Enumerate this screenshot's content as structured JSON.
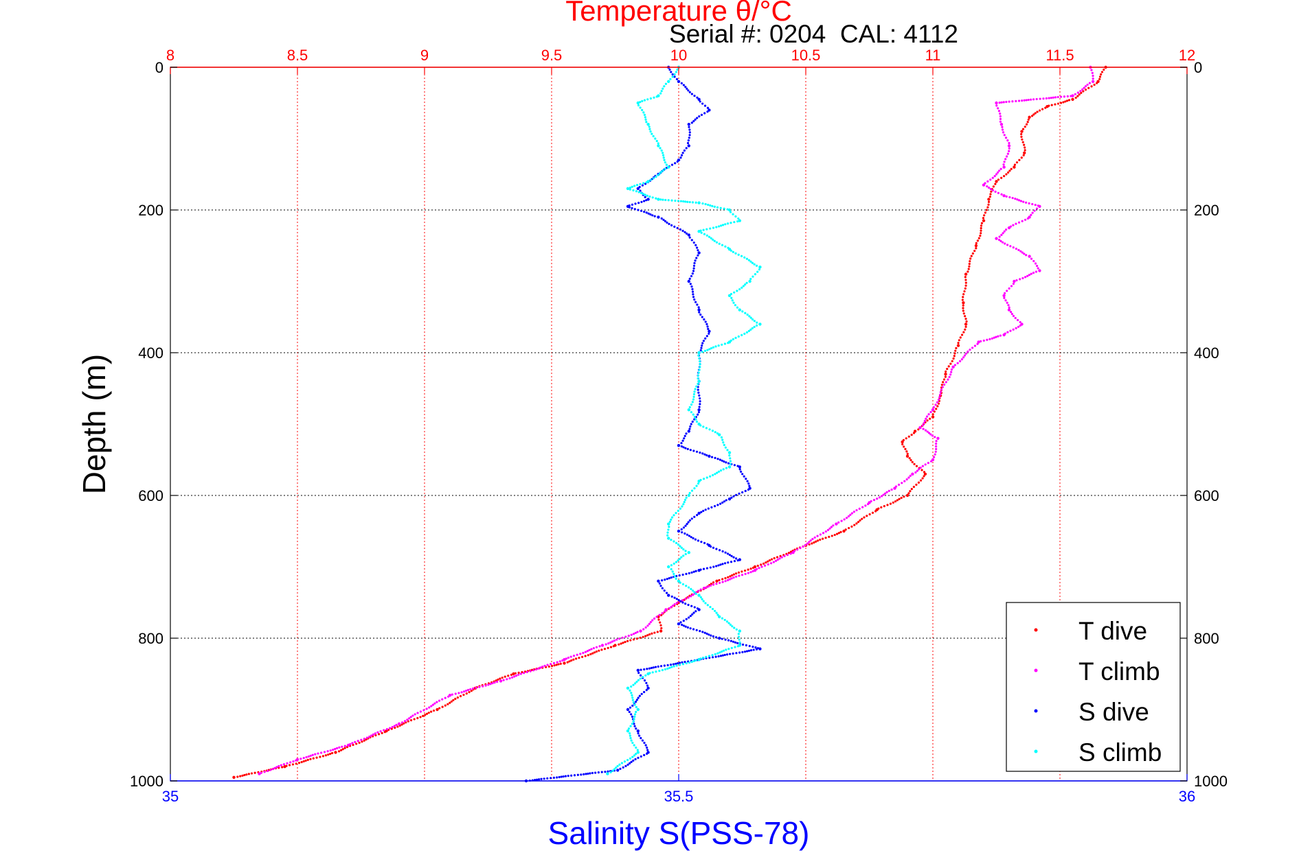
{
  "chart_data": {
    "type": "scatter",
    "title": "Temperature θ/°C",
    "subtitle": "Serial #: 0204  CAL: 4112",
    "xlabel": "Salinity S(PSS-78)",
    "ylabel": "Depth (m)",
    "x_top": {
      "range": [
        8,
        12
      ],
      "ticks": [
        "8",
        "8.5",
        "9",
        "9.5",
        "10",
        "10.5",
        "11",
        "11.5",
        "12"
      ],
      "color": "#ff0000"
    },
    "x_bottom": {
      "range": [
        35,
        36
      ],
      "ticks": [
        "35",
        "35.5",
        "36"
      ],
      "color": "#0000ff"
    },
    "y": {
      "range": [
        0,
        1000
      ],
      "reversed": true,
      "ticks": [
        "0",
        "200",
        "400",
        "600",
        "800",
        "1000"
      ]
    },
    "grid": true,
    "legend": {
      "position": "bottom-right",
      "entries": [
        "T dive",
        "T climb",
        "S dive",
        "S climb"
      ]
    },
    "series": [
      {
        "name": "T dive",
        "axis": "top",
        "color": "#ff0000",
        "points": [
          [
            11.68,
            0
          ],
          [
            11.65,
            20
          ],
          [
            11.55,
            45
          ],
          [
            11.45,
            55
          ],
          [
            11.38,
            70
          ],
          [
            11.35,
            90
          ],
          [
            11.36,
            120
          ],
          [
            11.32,
            140
          ],
          [
            11.25,
            160
          ],
          [
            11.22,
            185
          ],
          [
            11.2,
            215
          ],
          [
            11.17,
            250
          ],
          [
            11.13,
            290
          ],
          [
            11.12,
            330
          ],
          [
            11.13,
            360
          ],
          [
            11.1,
            390
          ],
          [
            11.05,
            430
          ],
          [
            11.03,
            460
          ],
          [
            11.0,
            490
          ],
          [
            10.93,
            510
          ],
          [
            10.88,
            525
          ],
          [
            10.9,
            545
          ],
          [
            10.97,
            570
          ],
          [
            10.9,
            600
          ],
          [
            10.78,
            620
          ],
          [
            10.65,
            650
          ],
          [
            10.5,
            670
          ],
          [
            10.3,
            700
          ],
          [
            10.15,
            720
          ],
          [
            10.0,
            750
          ],
          [
            9.92,
            770
          ],
          [
            9.93,
            790
          ],
          [
            9.75,
            810
          ],
          [
            9.55,
            835
          ],
          [
            9.35,
            850
          ],
          [
            9.2,
            870
          ],
          [
            9.05,
            900
          ],
          [
            8.85,
            930
          ],
          [
            8.65,
            960
          ],
          [
            8.45,
            980
          ],
          [
            8.25,
            995
          ]
        ]
      },
      {
        "name": "T climb",
        "axis": "top",
        "color": "#ff00ff",
        "points": [
          [
            11.62,
            0
          ],
          [
            11.63,
            20
          ],
          [
            11.55,
            40
          ],
          [
            11.25,
            50
          ],
          [
            11.27,
            80
          ],
          [
            11.3,
            110
          ],
          [
            11.28,
            140
          ],
          [
            11.2,
            165
          ],
          [
            11.28,
            180
          ],
          [
            11.42,
            195
          ],
          [
            11.38,
            210
          ],
          [
            11.3,
            225
          ],
          [
            11.25,
            240
          ],
          [
            11.38,
            265
          ],
          [
            11.42,
            285
          ],
          [
            11.32,
            300
          ],
          [
            11.28,
            320
          ],
          [
            11.3,
            340
          ],
          [
            11.35,
            360
          ],
          [
            11.28,
            375
          ],
          [
            11.18,
            385
          ],
          [
            11.08,
            420
          ],
          [
            11.0,
            480
          ],
          [
            10.95,
            505
          ],
          [
            11.02,
            520
          ],
          [
            11.0,
            550
          ],
          [
            10.92,
            570
          ],
          [
            10.85,
            590
          ],
          [
            10.75,
            610
          ],
          [
            10.62,
            640
          ],
          [
            10.45,
            680
          ],
          [
            10.3,
            705
          ],
          [
            10.1,
            730
          ],
          [
            9.95,
            760
          ],
          [
            9.85,
            790
          ],
          [
            9.7,
            810
          ],
          [
            9.55,
            830
          ],
          [
            9.3,
            860
          ],
          [
            9.1,
            880
          ],
          [
            8.9,
            920
          ],
          [
            8.7,
            950
          ],
          [
            8.5,
            970
          ],
          [
            8.35,
            990
          ]
        ]
      },
      {
        "name": "S dive",
        "axis": "bottom",
        "color": "#0000ff",
        "points": [
          [
            35.49,
            0
          ],
          [
            35.5,
            20
          ],
          [
            35.52,
            45
          ],
          [
            35.53,
            60
          ],
          [
            35.51,
            80
          ],
          [
            35.51,
            110
          ],
          [
            35.5,
            130
          ],
          [
            35.48,
            150
          ],
          [
            35.46,
            170
          ],
          [
            35.47,
            185
          ],
          [
            35.45,
            195
          ],
          [
            35.48,
            210
          ],
          [
            35.51,
            235
          ],
          [
            35.52,
            260
          ],
          [
            35.51,
            300
          ],
          [
            35.52,
            340
          ],
          [
            35.53,
            370
          ],
          [
            35.52,
            400
          ],
          [
            35.52,
            440
          ],
          [
            35.52,
            480
          ],
          [
            35.51,
            510
          ],
          [
            35.5,
            530
          ],
          [
            35.53,
            545
          ],
          [
            35.56,
            560
          ],
          [
            35.57,
            590
          ],
          [
            35.55,
            605
          ],
          [
            35.52,
            625
          ],
          [
            35.5,
            650
          ],
          [
            35.53,
            670
          ],
          [
            35.56,
            690
          ],
          [
            35.52,
            705
          ],
          [
            35.48,
            720
          ],
          [
            35.49,
            740
          ],
          [
            35.52,
            760
          ],
          [
            35.5,
            780
          ],
          [
            35.54,
            800
          ],
          [
            35.58,
            815
          ],
          [
            35.52,
            830
          ],
          [
            35.46,
            845
          ],
          [
            35.47,
            870
          ],
          [
            35.45,
            900
          ],
          [
            35.46,
            930
          ],
          [
            35.47,
            960
          ],
          [
            35.44,
            985
          ],
          [
            35.35,
            1000
          ]
        ]
      },
      {
        "name": "S climb",
        "axis": "bottom",
        "color": "#00ffff",
        "points": [
          [
            35.5,
            0
          ],
          [
            35.49,
            20
          ],
          [
            35.48,
            40
          ],
          [
            35.46,
            50
          ],
          [
            35.47,
            80
          ],
          [
            35.48,
            110
          ],
          [
            35.49,
            140
          ],
          [
            35.47,
            160
          ],
          [
            35.45,
            170
          ],
          [
            35.48,
            185
          ],
          [
            35.52,
            190
          ],
          [
            35.55,
            200
          ],
          [
            35.56,
            215
          ],
          [
            35.52,
            230
          ],
          [
            35.55,
            255
          ],
          [
            35.58,
            280
          ],
          [
            35.57,
            300
          ],
          [
            35.55,
            320
          ],
          [
            35.56,
            340
          ],
          [
            35.58,
            360
          ],
          [
            35.55,
            385
          ],
          [
            35.52,
            400
          ],
          [
            35.52,
            440
          ],
          [
            35.51,
            480
          ],
          [
            35.52,
            500
          ],
          [
            35.54,
            515
          ],
          [
            35.55,
            540
          ],
          [
            35.55,
            560
          ],
          [
            35.52,
            580
          ],
          [
            35.51,
            600
          ],
          [
            35.49,
            640
          ],
          [
            35.49,
            660
          ],
          [
            35.51,
            680
          ],
          [
            35.49,
            700
          ],
          [
            35.5,
            720
          ],
          [
            35.52,
            740
          ],
          [
            35.54,
            770
          ],
          [
            35.56,
            790
          ],
          [
            35.56,
            810
          ],
          [
            35.52,
            830
          ],
          [
            35.47,
            850
          ],
          [
            35.45,
            870
          ],
          [
            35.46,
            900
          ],
          [
            35.45,
            930
          ],
          [
            35.46,
            960
          ],
          [
            35.43,
            990
          ]
        ]
      }
    ]
  }
}
